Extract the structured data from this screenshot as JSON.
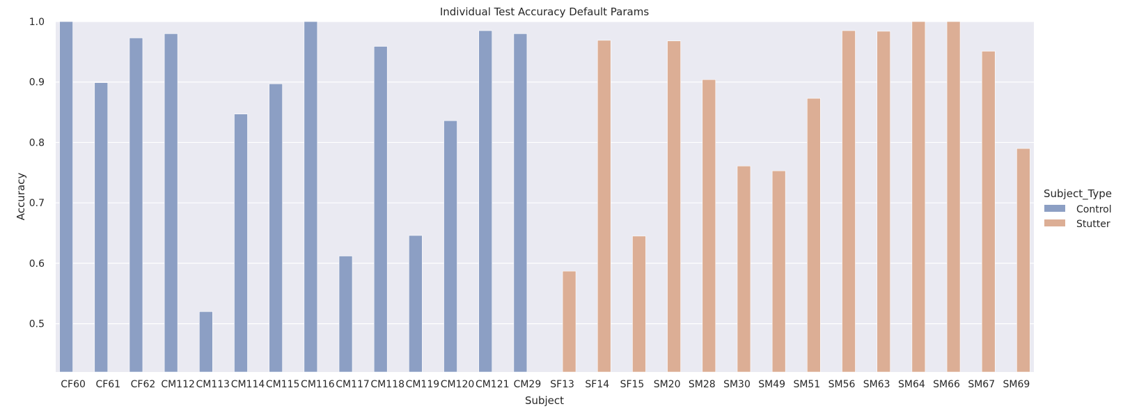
{
  "chart_data": {
    "type": "bar",
    "title": "Individual Test Accuracy Default Params",
    "xlabel": "Subject",
    "ylabel": "Accuracy",
    "ylim": [
      0.42,
      1.0
    ],
    "yticks": [
      0.5,
      0.6,
      0.7,
      0.8,
      0.9,
      1.0
    ],
    "ytick_labels": [
      "0.5",
      "0.6",
      "0.7",
      "0.8",
      "0.9",
      "1.0"
    ],
    "grid": true,
    "legend": {
      "title": "Subject_Type",
      "placement": "right"
    },
    "categories": [
      "CF60",
      "CF61",
      "CF62",
      "CM112",
      "CM113",
      "CM114",
      "CM115",
      "CM116",
      "CM117",
      "CM118",
      "CM119",
      "CM120",
      "CM121",
      "CM29",
      "SF13",
      "SF14",
      "SF15",
      "SM20",
      "SM28",
      "SM30",
      "SM49",
      "SM51",
      "SM56",
      "SM63",
      "SM64",
      "SM66",
      "SM67",
      "SM69"
    ],
    "series": [
      {
        "name": "Control",
        "color": "#8c9fc4",
        "values": [
          1.0,
          0.899,
          0.973,
          0.98,
          0.52,
          0.847,
          0.897,
          1.0,
          0.612,
          0.959,
          0.646,
          0.836,
          0.985,
          0.98,
          null,
          null,
          null,
          null,
          null,
          null,
          null,
          null,
          null,
          null,
          null,
          null,
          null,
          null
        ]
      },
      {
        "name": "Stutter",
        "color": "#dcae95",
        "values": [
          null,
          null,
          null,
          null,
          null,
          null,
          null,
          null,
          null,
          null,
          null,
          null,
          null,
          null,
          0.587,
          0.969,
          0.645,
          0.968,
          0.904,
          0.761,
          0.753,
          0.873,
          0.985,
          0.984,
          1.0,
          1.0,
          0.951,
          0.79
        ]
      }
    ]
  }
}
